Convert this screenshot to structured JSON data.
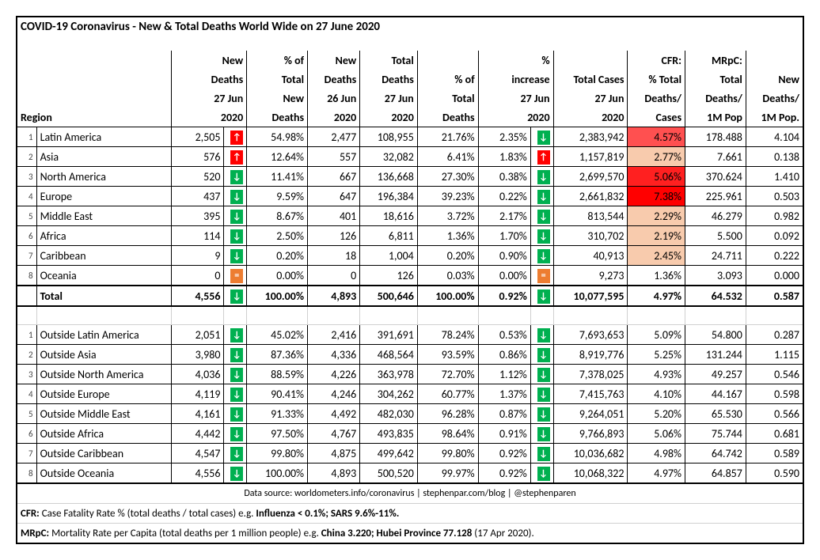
{
  "title": "COVID-19 Coronavirus - New & Total Deaths World Wide on 27 June 2020",
  "headers": {
    "region": "Region",
    "c1": [
      "New",
      "Deaths",
      "27 Jun",
      "2020"
    ],
    "c2": [
      "% of",
      "Total",
      "New",
      "Deaths"
    ],
    "c3": [
      "New",
      "Deaths",
      "26 Jun",
      "2020"
    ],
    "c4": [
      "Total",
      "Deaths",
      "27 Jun",
      "2020"
    ],
    "c5": [
      "",
      "% of",
      "Total",
      "Deaths"
    ],
    "c6": [
      "%",
      "increase",
      "27 Jun",
      "2020"
    ],
    "c7": [
      "",
      "Total Cases",
      "27 Jun",
      "2020"
    ],
    "c8": [
      "CFR:",
      "% Total",
      "Deaths/",
      "Cases"
    ],
    "c9": [
      "MRpC:",
      "Total",
      "Deaths/",
      "1M Pop"
    ],
    "c10": [
      "",
      "New",
      "Deaths/",
      "1M Pop."
    ]
  },
  "cfr_colors": {
    "c457": "#ff5050",
    "c277": "#f8cbad",
    "c506": "#ff2020",
    "c738": "#ff0000",
    "c229": "#f8cbad",
    "c219": "#f8cbad",
    "c245": "#f8cbad",
    "c136": "#ffffff"
  },
  "regions": [
    {
      "n": "1",
      "name": "Latin America",
      "nd": "2,505",
      "a1": "up",
      "pct_new": "54.98%",
      "nd26": "2,477",
      "td": "108,955",
      "pct_td": "21.76%",
      "inc": "2.35%",
      "a2": "down",
      "tc": "2,383,942",
      "cfr": "4.57%",
      "cfrc": "c457",
      "mrpc": "178.488",
      "ndpm": "4.104"
    },
    {
      "n": "2",
      "name": "Asia",
      "nd": "576",
      "a1": "up",
      "pct_new": "12.64%",
      "nd26": "557",
      "td": "32,082",
      "pct_td": "6.41%",
      "inc": "1.83%",
      "a2": "up",
      "tc": "1,157,819",
      "cfr": "2.77%",
      "cfrc": "c277",
      "mrpc": "7.661",
      "ndpm": "0.138"
    },
    {
      "n": "3",
      "name": "North America",
      "nd": "520",
      "a1": "down",
      "pct_new": "11.41%",
      "nd26": "667",
      "td": "136,668",
      "pct_td": "27.30%",
      "inc": "0.38%",
      "a2": "down",
      "tc": "2,699,570",
      "cfr": "5.06%",
      "cfrc": "c506",
      "mrpc": "370.624",
      "ndpm": "1.410"
    },
    {
      "n": "4",
      "name": "Europe",
      "nd": "437",
      "a1": "down",
      "pct_new": "9.59%",
      "nd26": "647",
      "td": "196,384",
      "pct_td": "39.23%",
      "inc": "0.22%",
      "a2": "down",
      "tc": "2,661,832",
      "cfr": "7.38%",
      "cfrc": "c738",
      "mrpc": "225.961",
      "ndpm": "0.503"
    },
    {
      "n": "5",
      "name": "Middle East",
      "nd": "395",
      "a1": "down",
      "pct_new": "8.67%",
      "nd26": "401",
      "td": "18,616",
      "pct_td": "3.72%",
      "inc": "2.17%",
      "a2": "down",
      "tc": "813,544",
      "cfr": "2.29%",
      "cfrc": "c229",
      "mrpc": "46.279",
      "ndpm": "0.982"
    },
    {
      "n": "6",
      "name": "Africa",
      "nd": "114",
      "a1": "down",
      "pct_new": "2.50%",
      "nd26": "126",
      "td": "6,811",
      "pct_td": "1.36%",
      "inc": "1.70%",
      "a2": "down",
      "tc": "310,702",
      "cfr": "2.19%",
      "cfrc": "c219",
      "mrpc": "5.500",
      "ndpm": "0.092"
    },
    {
      "n": "7",
      "name": "Caribbean",
      "nd": "9",
      "a1": "down",
      "pct_new": "0.20%",
      "nd26": "18",
      "td": "1,004",
      "pct_td": "0.20%",
      "inc": "0.90%",
      "a2": "down",
      "tc": "40,913",
      "cfr": "2.45%",
      "cfrc": "c245",
      "mrpc": "24.711",
      "ndpm": "0.222"
    },
    {
      "n": "8",
      "name": "Oceania",
      "nd": "0",
      "a1": "eq",
      "pct_new": "0.00%",
      "nd26": "0",
      "td": "126",
      "pct_td": "0.03%",
      "inc": "0.00%",
      "a2": "eq",
      "tc": "9,273",
      "cfr": "1.36%",
      "cfrc": "c136",
      "mrpc": "3.093",
      "ndpm": "0.000"
    }
  ],
  "total": {
    "name": "Total",
    "nd": "4,556",
    "a1": "down",
    "pct_new": "100.00%",
    "nd26": "4,893",
    "td": "500,646",
    "pct_td": "100.00%",
    "inc": "0.92%",
    "a2": "down",
    "tc": "10,077,595",
    "cfr": "4.97%",
    "mrpc": "64.532",
    "ndpm": "0.587"
  },
  "outside": [
    {
      "n": "1",
      "name": "Outside Latin America",
      "nd": "2,051",
      "a1": "down",
      "pct_new": "45.02%",
      "nd26": "2,416",
      "td": "391,691",
      "pct_td": "78.24%",
      "inc": "0.53%",
      "a2": "down",
      "tc": "7,693,653",
      "cfr": "5.09%",
      "mrpc": "54.800",
      "ndpm": "0.287"
    },
    {
      "n": "2",
      "name": "Outside Asia",
      "nd": "3,980",
      "a1": "down",
      "pct_new": "87.36%",
      "nd26": "4,336",
      "td": "468,564",
      "pct_td": "93.59%",
      "inc": "0.86%",
      "a2": "down",
      "tc": "8,919,776",
      "cfr": "5.25%",
      "mrpc": "131.244",
      "ndpm": "1.115"
    },
    {
      "n": "3",
      "name": "Outside North America",
      "nd": "4,036",
      "a1": "down",
      "pct_new": "88.59%",
      "nd26": "4,226",
      "td": "363,978",
      "pct_td": "72.70%",
      "inc": "1.12%",
      "a2": "down",
      "tc": "7,378,025",
      "cfr": "4.93%",
      "mrpc": "49.257",
      "ndpm": "0.546"
    },
    {
      "n": "4",
      "name": "Outside Europe",
      "nd": "4,119",
      "a1": "down",
      "pct_new": "90.41%",
      "nd26": "4,246",
      "td": "304,262",
      "pct_td": "60.77%",
      "inc": "1.37%",
      "a2": "down",
      "tc": "7,415,763",
      "cfr": "4.10%",
      "mrpc": "44.167",
      "ndpm": "0.598"
    },
    {
      "n": "5",
      "name": "Outside Middle East",
      "nd": "4,161",
      "a1": "down",
      "pct_new": "91.33%",
      "nd26": "4,492",
      "td": "482,030",
      "pct_td": "96.28%",
      "inc": "0.87%",
      "a2": "down",
      "tc": "9,264,051",
      "cfr": "5.20%",
      "mrpc": "65.530",
      "ndpm": "0.566"
    },
    {
      "n": "6",
      "name": "Outside Africa",
      "nd": "4,442",
      "a1": "down",
      "pct_new": "97.50%",
      "nd26": "4,767",
      "td": "493,835",
      "pct_td": "98.64%",
      "inc": "0.91%",
      "a2": "down",
      "tc": "9,766,893",
      "cfr": "5.06%",
      "mrpc": "75.744",
      "ndpm": "0.681"
    },
    {
      "n": "7",
      "name": "Outside Caribbean",
      "nd": "4,547",
      "a1": "down",
      "pct_new": "99.80%",
      "nd26": "4,875",
      "td": "499,642",
      "pct_td": "99.80%",
      "inc": "0.92%",
      "a2": "down",
      "tc": "10,036,682",
      "cfr": "4.98%",
      "mrpc": "64.742",
      "ndpm": "0.589"
    },
    {
      "n": "8",
      "name": "Outside Oceania",
      "nd": "4,556",
      "a1": "down",
      "pct_new": "100.00%",
      "nd26": "4,893",
      "td": "500,520",
      "pct_td": "99.97%",
      "inc": "0.92%",
      "a2": "down",
      "tc": "10,068,322",
      "cfr": "4.97%",
      "mrpc": "64.857",
      "ndpm": "0.590"
    }
  ],
  "footer": {
    "source": "Data source: worldometers.info/coronavirus | stephenpar.com/blog | @stephenparen",
    "cfr_label": "CFR:",
    "cfr_text": " Case Fatality Rate % (total deaths / total cases) e.g. ",
    "cfr_bold": "Influenza  < 0.1%; SARS 9.6%-11%.",
    "mrpc_label": "MRpC:",
    "mrpc_text": " Mortality Rate per Capita (total deaths per 1 million people) e.g.  ",
    "mrpc_bold": "China 3.220; Hubei Province 77.128",
    "mrpc_tail": " (17 Apr 2020)."
  },
  "arrows": {
    "up": "↑",
    "down": "↓",
    "eq": "="
  },
  "col_widths": [
    "18",
    "160",
    "62",
    "18",
    "72",
    "62",
    "68",
    "72",
    "62",
    "18",
    "88",
    "68",
    "72",
    "68"
  ]
}
